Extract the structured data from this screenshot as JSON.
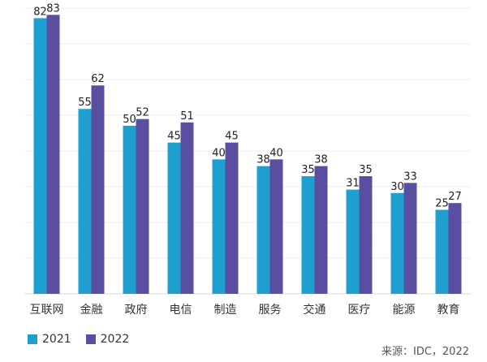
{
  "chart_data": {
    "type": "bar",
    "categories": [
      "互联网",
      "金融",
      "政府",
      "电信",
      "制造",
      "服务",
      "交通",
      "医疗",
      "能源",
      "教育"
    ],
    "series": [
      {
        "name": "2021",
        "values": [
          82,
          55,
          50,
          45,
          40,
          38,
          35,
          31,
          30,
          25
        ],
        "color": "#1f9fd0"
      },
      {
        "name": "2022",
        "values": [
          83,
          62,
          52,
          51,
          45,
          40,
          38,
          35,
          33,
          27
        ],
        "color": "#5a4ea0"
      }
    ],
    "ylim": [
      0,
      85
    ],
    "grid": true,
    "legend": "bottom-left"
  },
  "source": "来源：IDC，2022"
}
